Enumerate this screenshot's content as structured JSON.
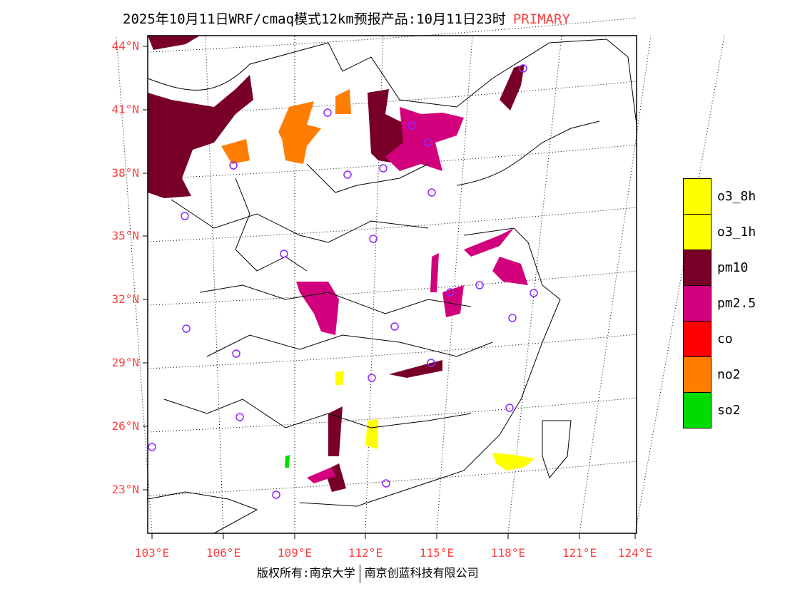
{
  "title": {
    "main": "2025年10月11日WRF/cmaq模式12km预报产品:10月11日23时",
    "mode": "PRIMARY"
  },
  "lat_labels": [
    "44°N",
    "41°N",
    "38°N",
    "35°N",
    "32°N",
    "29°N",
    "26°N",
    "23°N"
  ],
  "lon_labels": [
    "103°E",
    "106°E",
    "109°E",
    "112°E",
    "115°E",
    "118°E",
    "121°E",
    "124°E"
  ],
  "legend": [
    {
      "label": "o3_8h",
      "color": "#ffff00"
    },
    {
      "label": "o3_1h",
      "color": "#ffff00"
    },
    {
      "label": "pm10",
      "color": "#780028"
    },
    {
      "label": "pm2.5",
      "color": "#d2007d"
    },
    {
      "label": "co",
      "color": "#ff0000"
    },
    {
      "label": "no2",
      "color": "#ff7d00"
    },
    {
      "label": "so2",
      "color": "#00dc00"
    }
  ],
  "footer": {
    "left": "版权所有:南京大学",
    "right": "南京创蓝科技有限公司"
  }
}
